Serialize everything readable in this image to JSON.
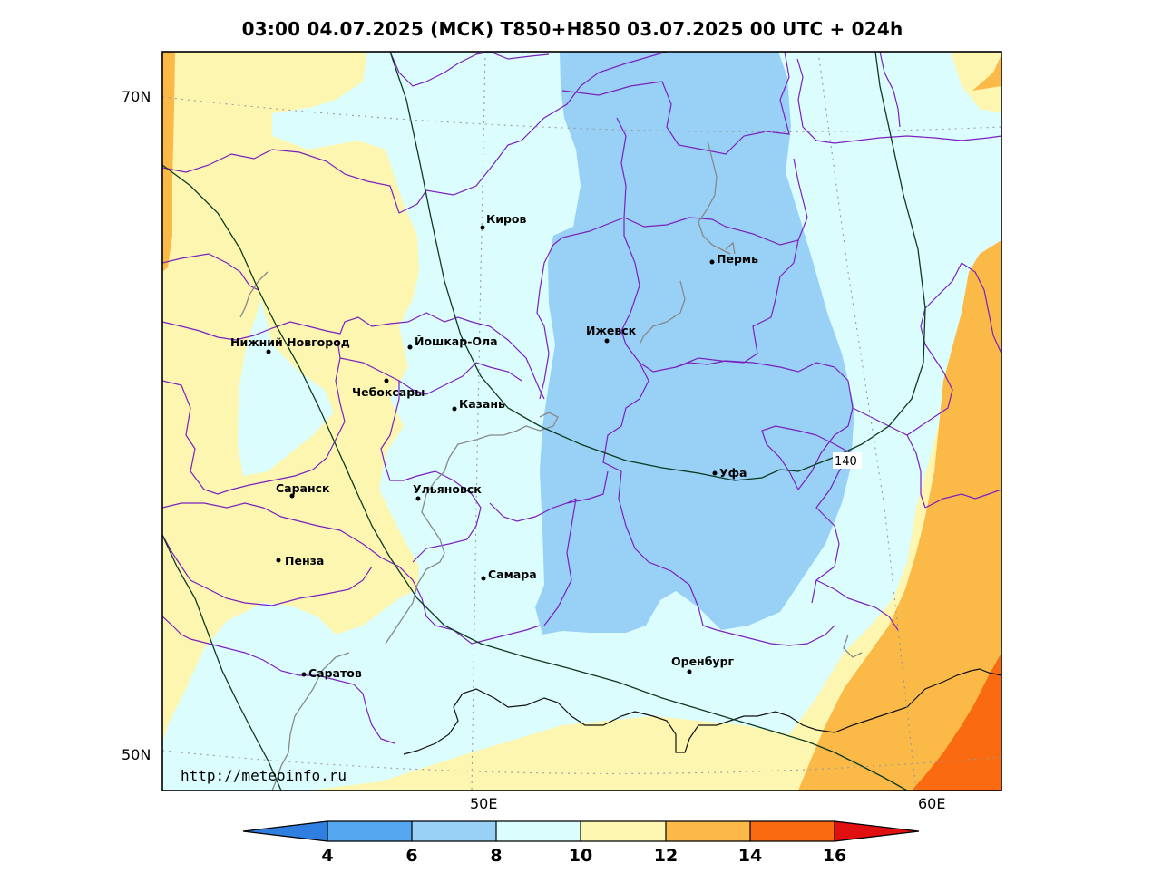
{
  "title": "03:00 04.07.2025 (МСК) T850+H850 03.07.2025 00 UTC + 024h",
  "url": "http://meteoinfo.ru",
  "lat_labels": [
    "70N",
    "50N"
  ],
  "lon_labels": [
    "50E",
    "60E"
  ],
  "isoline_label": "140",
  "cities": [
    {
      "id": "kirov",
      "name": "Киров"
    },
    {
      "id": "perm",
      "name": "Пермь"
    },
    {
      "id": "nizhny",
      "name": "Нижний Новгород"
    },
    {
      "id": "yoshkar",
      "name": "Йошкар-Ола"
    },
    {
      "id": "izhevsk",
      "name": "Ижевск"
    },
    {
      "id": "cheboksary",
      "name": "Чебоксары"
    },
    {
      "id": "kazan",
      "name": "Казань"
    },
    {
      "id": "ufa",
      "name": "Уфа"
    },
    {
      "id": "saransk",
      "name": "Саранск"
    },
    {
      "id": "ulyanovsk",
      "name": "Ульяновск"
    },
    {
      "id": "penza",
      "name": "Пенза"
    },
    {
      "id": "samara",
      "name": "Самара"
    },
    {
      "id": "orenburg",
      "name": "Оренбург"
    },
    {
      "id": "saratov",
      "name": "Саратов"
    }
  ],
  "colorbar": {
    "ticks": [
      "4",
      "6",
      "8",
      "10",
      "12",
      "14",
      "16"
    ],
    "colors": [
      "#2f7fe0",
      "#55a8f0",
      "#99d0f6",
      "#dcfdfe",
      "#fdf6b0",
      "#fbb947",
      "#fa6a10",
      "#e01010"
    ]
  },
  "colors": {
    "band_6_8": "#99d0f6",
    "band_8_10": "#dcfdfe",
    "band_10_12": "#fdf6b0",
    "band_12_14": "#fbb947",
    "band_14_16": "#fa6a10",
    "borders": "#7b20c0",
    "isolines": "#0b3a20",
    "rivers": "#888888"
  }
}
